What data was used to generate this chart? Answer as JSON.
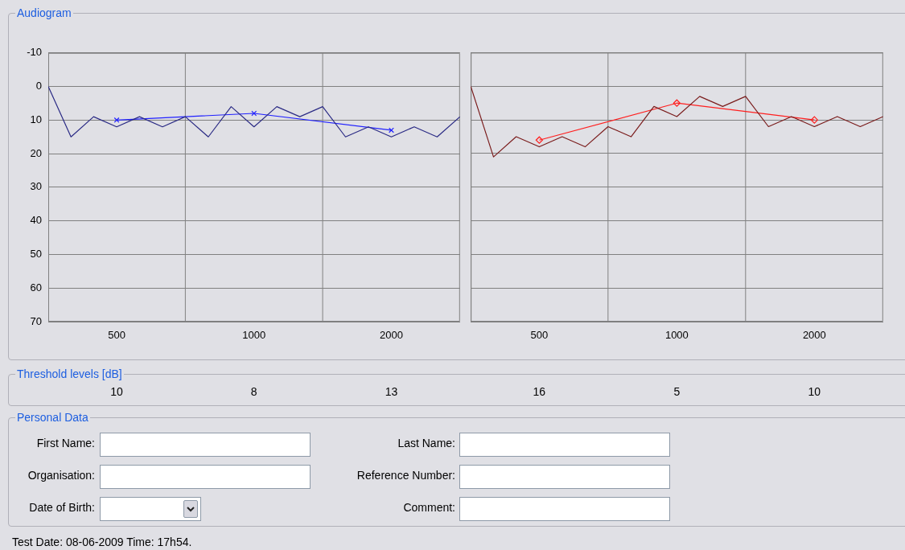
{
  "chart_data": [
    {
      "type": "line",
      "title": "Audiogram",
      "log": "x",
      "xlim": [
        354,
        2828
      ],
      "xticks": [
        500,
        1000,
        2000
      ],
      "ylim": [
        70,
        -10
      ],
      "yticks": [
        -10,
        0,
        10,
        20,
        30,
        40,
        50,
        60,
        70
      ],
      "grid": "y",
      "legend": false,
      "ref_lines": [
        {
          "axis": "x",
          "value": 707,
          "color": "#808080"
        },
        {
          "axis": "x",
          "value": 1414,
          "color": "#808080"
        }
      ],
      "series": [
        {
          "color": "#2b2b85",
          "marker": "none",
          "x": [
            354,
            397,
            445,
            500,
            561,
            630,
            707,
            794,
            891,
            1000,
            1122,
            1260,
            1414,
            1587,
            1782,
            2000,
            2245,
            2520,
            2828
          ],
          "values": [
            0,
            15,
            9,
            12,
            9,
            12,
            9,
            15,
            6,
            12,
            6,
            9,
            6,
            15,
            12,
            15,
            12,
            15,
            9
          ]
        },
        {
          "color": "#2020ff",
          "marker": "cross",
          "x": [
            500,
            1000,
            2000
          ],
          "values": [
            10,
            8,
            13
          ]
        }
      ]
    },
    {
      "type": "line",
      "log": "x",
      "xlim": [
        354,
        2828
      ],
      "xticks": [
        500,
        1000,
        2000
      ],
      "ylim": [
        70,
        -10
      ],
      "yticks": [
        -10,
        0,
        10,
        20,
        30,
        40,
        50,
        60,
        70
      ],
      "grid": "y",
      "legend": false,
      "tick_labels": "x",
      "ref_lines": [
        {
          "axis": "x",
          "value": 707,
          "color": "#808080"
        },
        {
          "axis": "x",
          "value": 1414,
          "color": "#808080"
        }
      ],
      "series": [
        {
          "color": "#7a1c1c",
          "marker": "none",
          "x": [
            354,
            397,
            445,
            500,
            561,
            630,
            707,
            794,
            891,
            1000,
            1122,
            1260,
            1414,
            1587,
            1782,
            2000,
            2245,
            2520,
            2828
          ],
          "values": [
            0,
            21,
            15,
            18,
            15,
            18,
            12,
            15,
            6,
            9,
            3,
            6,
            3,
            12,
            9,
            12,
            9,
            12,
            9
          ]
        },
        {
          "color": "#ff2020",
          "marker": "diamond",
          "x": [
            500,
            1000,
            2000
          ],
          "values": [
            16,
            5,
            10
          ]
        }
      ]
    },
    {
      "type": "other",
      "title": "Threshold levels [dB]",
      "annotations": [
        "10",
        "8",
        "13",
        "16",
        "5",
        "10"
      ]
    },
    {
      "type": "other",
      "title": "Personal Data",
      "annotations": [
        "First Name:",
        "Organisation:",
        "Date of Birth:",
        "Last Name:",
        "Reference Number:",
        "Comment:",
        "Test Date: 08-06-2009 Time: 17h54."
      ]
    }
  ]
}
